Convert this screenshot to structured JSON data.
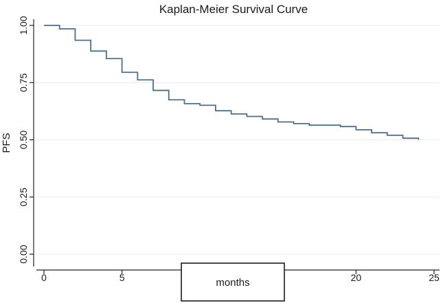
{
  "chart_data": {
    "type": "line",
    "title": "Kaplan-Meier Survival Curve",
    "xlabel": "months",
    "ylabel": "PFS",
    "xlim": [
      0,
      25
    ],
    "ylim": [
      0,
      1
    ],
    "x_ticks": [
      0,
      5,
      10,
      15,
      20,
      25
    ],
    "x_tick_labels": [
      "0",
      "5",
      "",
      "",
      "20",
      "25"
    ],
    "y_ticks": [
      0,
      0.25,
      0.5,
      0.75,
      1
    ],
    "y_tick_labels": [
      "0.00",
      "0.25",
      "0.50",
      "0.75",
      "1.00"
    ],
    "grid": true,
    "series": [
      {
        "name": "PFS",
        "step": true,
        "color": "#4a6f8f",
        "x": [
          0,
          1,
          2,
          3,
          4,
          5,
          6,
          7,
          8,
          9,
          10,
          11,
          12,
          13,
          14,
          15,
          16,
          17,
          18,
          19,
          20,
          21,
          22,
          23,
          24
        ],
        "y": [
          1.0,
          0.985,
          0.935,
          0.888,
          0.855,
          0.795,
          0.762,
          0.716,
          0.675,
          0.658,
          0.651,
          0.627,
          0.613,
          0.602,
          0.591,
          0.578,
          0.571,
          0.564,
          0.564,
          0.558,
          0.544,
          0.531,
          0.52,
          0.507,
          0.5
        ]
      }
    ]
  }
}
